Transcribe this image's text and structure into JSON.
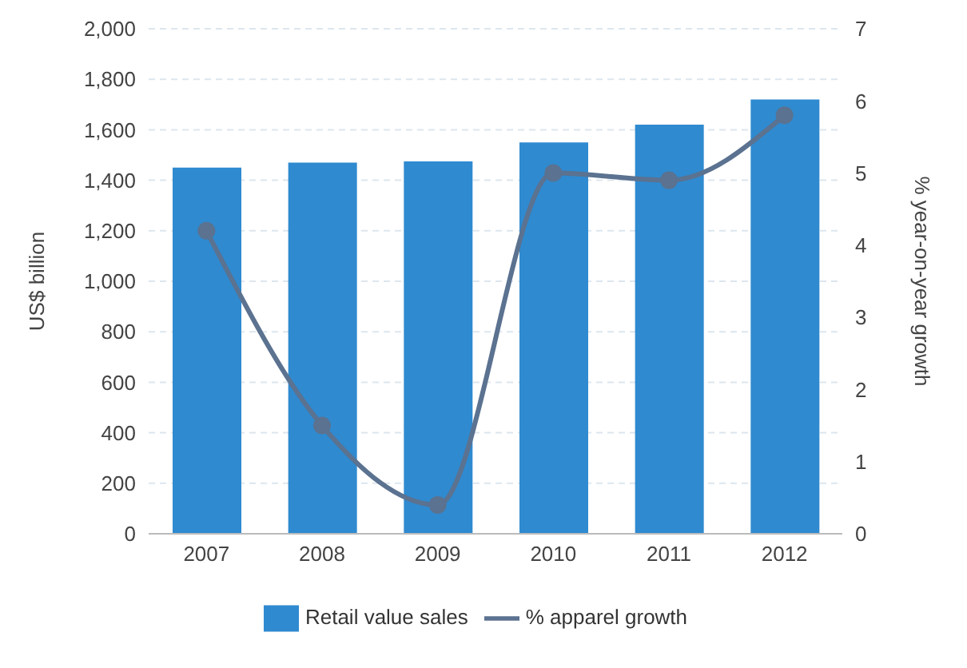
{
  "chart_data": {
    "type": "bar",
    "categories": [
      "2007",
      "2008",
      "2009",
      "2010",
      "2011",
      "2012"
    ],
    "series": [
      {
        "name": "Retail value sales",
        "color": "#2f8ad0",
        "values": [
          1450,
          1470,
          1475,
          1550,
          1620,
          1720
        ]
      },
      {
        "name": "% apparel growth",
        "type": "line",
        "axis": "y2",
        "color": "#5b7290",
        "values": [
          4.2,
          1.5,
          0.4,
          5.0,
          4.9,
          5.8
        ]
      }
    ],
    "ylabel": "US$ billion",
    "y2label": "% year-on-year growth",
    "ylim": [
      0,
      2000
    ],
    "yticks": [
      0,
      200,
      400,
      600,
      800,
      {
        "value": 1000,
        "label": "1,000"
      },
      {
        "value": 1200,
        "label": "1,200"
      },
      {
        "value": 1400,
        "label": "1,400"
      },
      {
        "value": 1600,
        "label": "1,600"
      },
      {
        "value": 1800,
        "label": "1,800"
      },
      {
        "value": 2000,
        "label": "2,000"
      }
    ],
    "y2lim": [
      0,
      7
    ],
    "y2ticks": [
      0,
      1,
      2,
      3,
      4,
      5,
      6,
      7
    ],
    "grid": "y",
    "legend": "bottom",
    "marker": "circle"
  }
}
